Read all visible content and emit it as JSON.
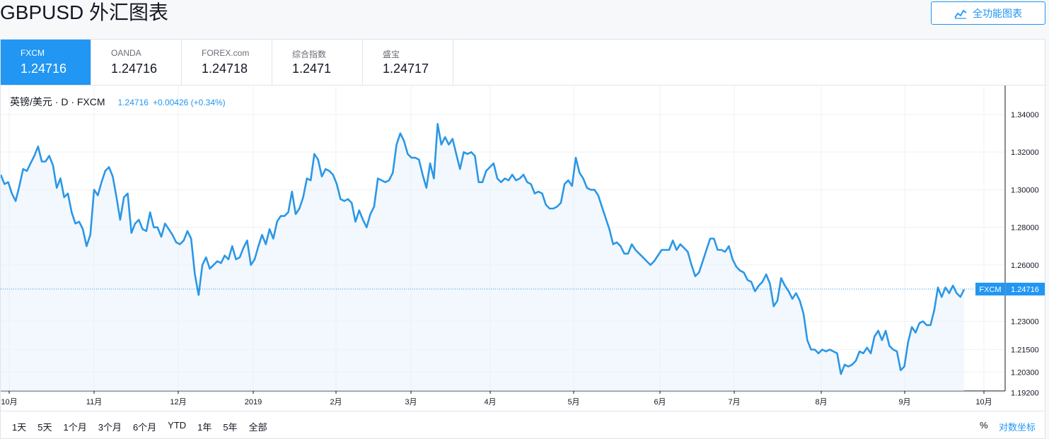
{
  "header": {
    "title": "GBPUSD 外汇图表",
    "full_chart_label": "全功能图表"
  },
  "tabs": [
    {
      "name": "FXCM",
      "value": "1.24716",
      "active": true
    },
    {
      "name": "OANDA",
      "value": "1.24716",
      "active": false
    },
    {
      "name": "FOREX.com",
      "value": "1.24718",
      "active": false
    },
    {
      "name": "综合指数",
      "value": "1.2471",
      "active": false
    },
    {
      "name": "盛宝",
      "value": "1.24717",
      "active": false
    }
  ],
  "legend": {
    "symbol": "英镑/美元 · D · FXCM",
    "last": "1.24716",
    "change": "+0.00426 (+0.34%)"
  },
  "ranges": [
    "1天",
    "5天",
    "1个月",
    "3个月",
    "6个月",
    "YTD",
    "1年",
    "5年",
    "全部"
  ],
  "percent_label": "%",
  "log_label": "对数坐标",
  "colors": {
    "accent": "#2196f3",
    "line": "#2b97e6",
    "fill": "#eaf3fb",
    "grid": "#eef0f3"
  },
  "chart_data": {
    "type": "area",
    "series": [
      {
        "name": "FXCM",
        "values": [
          1.308,
          1.303,
          1.304,
          1.298,
          1.294,
          1.302,
          1.311,
          1.31,
          1.314,
          1.318,
          1.323,
          1.315,
          1.315,
          1.318,
          1.313,
          1.301,
          1.306,
          1.296,
          1.298,
          1.288,
          1.282,
          1.283,
          1.279,
          1.27,
          1.276,
          1.3,
          1.297,
          1.304,
          1.31,
          1.312,
          1.307,
          1.296,
          1.284,
          1.296,
          1.298,
          1.277,
          1.282,
          1.284,
          1.279,
          1.278,
          1.288,
          1.28,
          1.28,
          1.275,
          1.282,
          1.279,
          1.276,
          1.272,
          1.271,
          1.273,
          1.278,
          1.274,
          1.255,
          1.244,
          1.26,
          1.264,
          1.258,
          1.26,
          1.262,
          1.261,
          1.265,
          1.263,
          1.27,
          1.263,
          1.264,
          1.269,
          1.273,
          1.26,
          1.263,
          1.27,
          1.276,
          1.271,
          1.279,
          1.274,
          1.283,
          1.286,
          1.286,
          1.288,
          1.299,
          1.287,
          1.29,
          1.296,
          1.306,
          1.305,
          1.319,
          1.316,
          1.307,
          1.311,
          1.31,
          1.308,
          1.303,
          1.295,
          1.294,
          1.295,
          1.293,
          1.283,
          1.289,
          1.284,
          1.28,
          1.287,
          1.291,
          1.306,
          1.305,
          1.304,
          1.305,
          1.309,
          1.324,
          1.33,
          1.326,
          1.319,
          1.317,
          1.317,
          1.316,
          1.308,
          1.301,
          1.314,
          1.306,
          1.335,
          1.324,
          1.328,
          1.324,
          1.327,
          1.319,
          1.311,
          1.32,
          1.319,
          1.32,
          1.318,
          1.304,
          1.304,
          1.31,
          1.312,
          1.314,
          1.306,
          1.304,
          1.306,
          1.305,
          1.308,
          1.305,
          1.306,
          1.308,
          1.304,
          1.303,
          1.298,
          1.299,
          1.298,
          1.292,
          1.29,
          1.29,
          1.291,
          1.293,
          1.303,
          1.305,
          1.302,
          1.317,
          1.309,
          1.306,
          1.301,
          1.3,
          1.3,
          1.297,
          1.291,
          1.285,
          1.279,
          1.271,
          1.272,
          1.27,
          1.266,
          1.266,
          1.271,
          1.268,
          1.266,
          1.264,
          1.262,
          1.26,
          1.262,
          1.265,
          1.268,
          1.268,
          1.268,
          1.273,
          1.268,
          1.271,
          1.269,
          1.267,
          1.26,
          1.254,
          1.256,
          1.262,
          1.268,
          1.274,
          1.274,
          1.268,
          1.268,
          1.267,
          1.27,
          1.263,
          1.259,
          1.257,
          1.256,
          1.252,
          1.251,
          1.246,
          1.249,
          1.251,
          1.255,
          1.25,
          1.238,
          1.241,
          1.253,
          1.249,
          1.246,
          1.242,
          1.245,
          1.241,
          1.234,
          1.22,
          1.215,
          1.215,
          1.213,
          1.215,
          1.214,
          1.215,
          1.214,
          1.213,
          1.202,
          1.207,
          1.206,
          1.207,
          1.209,
          1.214,
          1.213,
          1.216,
          1.213,
          1.222,
          1.225,
          1.22,
          1.225,
          1.217,
          1.215,
          1.214,
          1.204,
          1.206,
          1.219,
          1.227,
          1.224,
          1.229,
          1.23,
          1.228,
          1.228,
          1.236,
          1.248,
          1.243,
          1.248,
          1.245,
          1.249,
          1.245,
          1.243,
          1.247
        ]
      }
    ],
    "x_labels": [
      "10月",
      "11月",
      "12月",
      "2019",
      "2月",
      "3月",
      "4月",
      "5月",
      "6月",
      "7月",
      "8月",
      "9月",
      "10月"
    ],
    "y_ticks": [
      "1.34000",
      "1.32000",
      "1.30000",
      "1.28000",
      "1.26000",
      "1.23000",
      "1.21500",
      "1.20300",
      "1.19200"
    ],
    "last_value_label": "FXCM",
    "last_value": "1.24716"
  }
}
